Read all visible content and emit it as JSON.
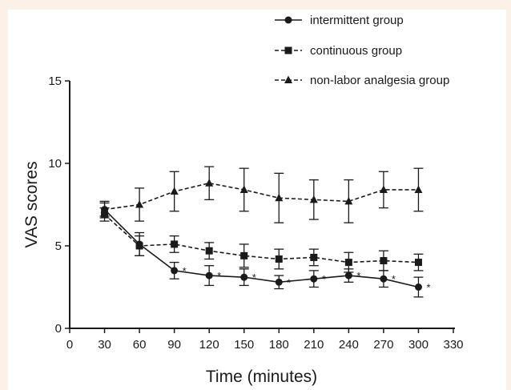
{
  "chart_data": {
    "type": "line",
    "xlabel": "Time (minutes)",
    "ylabel": "VAS  scores",
    "xlim": [
      0,
      330
    ],
    "ylim": [
      0,
      15
    ],
    "x_ticks": [
      0,
      30,
      60,
      90,
      120,
      150,
      180,
      210,
      240,
      270,
      300,
      330
    ],
    "y_ticks": [
      0,
      5,
      10,
      15
    ],
    "x": [
      30,
      60,
      90,
      120,
      150,
      180,
      210,
      240,
      270,
      300
    ],
    "grid": false,
    "legend_position": "top-right",
    "significance_marker": "*",
    "series": [
      {
        "name": "intermittent group",
        "marker": "circle",
        "line_style": "solid",
        "values": [
          7.2,
          5.1,
          3.5,
          3.2,
          3.1,
          2.8,
          3.0,
          3.2,
          3.0,
          2.5
        ],
        "errors": [
          0.5,
          0.7,
          0.5,
          0.6,
          0.5,
          0.4,
          0.5,
          0.4,
          0.5,
          0.6
        ],
        "significant": [
          false,
          false,
          true,
          true,
          true,
          true,
          true,
          true,
          true,
          true
        ]
      },
      {
        "name": "continuous group",
        "marker": "square",
        "line_style": "dashed",
        "values": [
          6.9,
          5.0,
          5.1,
          4.7,
          4.4,
          4.2,
          4.3,
          4.0,
          4.1,
          4.0
        ],
        "errors": [
          0.4,
          0.6,
          0.5,
          0.5,
          0.7,
          0.6,
          0.5,
          0.6,
          0.6,
          0.5
        ]
      },
      {
        "name": "non-labor analgesia group",
        "marker": "triangle",
        "line_style": "dashed",
        "values": [
          7.2,
          7.5,
          8.3,
          8.8,
          8.4,
          7.9,
          7.8,
          7.7,
          8.4,
          8.4
        ],
        "errors": [
          0.4,
          1.0,
          1.2,
          1.0,
          1.3,
          1.5,
          1.2,
          1.3,
          1.1,
          1.3
        ]
      }
    ]
  }
}
